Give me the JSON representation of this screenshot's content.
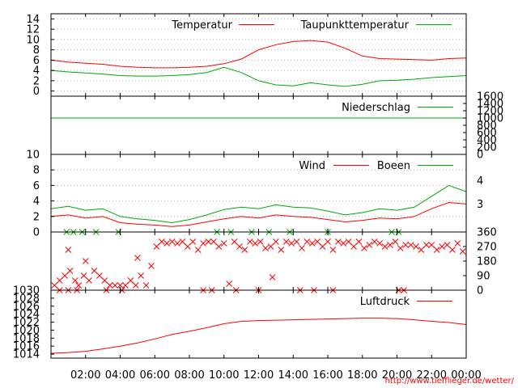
{
  "chart_data": [
    {
      "type": "line",
      "id": "temp",
      "ylim": [
        -1,
        15
      ],
      "yticks": [
        0,
        2,
        4,
        6,
        8,
        10,
        12,
        14
      ],
      "grid": true,
      "legend_position": "top",
      "series": [
        {
          "name": "Temperatur",
          "color": "#ff0000",
          "x": [
            0,
            1,
            2,
            3,
            4,
            5,
            6,
            7,
            8,
            9,
            10,
            11,
            12,
            13,
            14,
            15,
            16,
            17,
            18,
            19,
            20,
            21,
            22,
            23,
            24
          ],
          "y": [
            6.0,
            5.6,
            5.4,
            5.2,
            4.8,
            4.6,
            4.5,
            4.5,
            4.6,
            4.8,
            5.3,
            6.2,
            8.0,
            9.0,
            9.6,
            9.8,
            9.5,
            8.3,
            6.8,
            6.3,
            6.2,
            6.1,
            6.0,
            6.3,
            6.4
          ]
        },
        {
          "name": "Taupunkttemperatur",
          "color": "#00aa00",
          "x": [
            0,
            1,
            2,
            3,
            4,
            5,
            6,
            7,
            8,
            9,
            10,
            11,
            12,
            13,
            14,
            15,
            16,
            17,
            18,
            19,
            20,
            21,
            22,
            23,
            24
          ],
          "y": [
            4.0,
            3.7,
            3.5,
            3.3,
            3.0,
            2.9,
            2.9,
            3.0,
            3.2,
            3.6,
            4.6,
            3.6,
            2.0,
            1.2,
            1.0,
            1.6,
            1.2,
            0.9,
            1.3,
            2.0,
            2.1,
            2.3,
            2.6,
            2.8,
            3.0
          ]
        }
      ]
    },
    {
      "type": "line",
      "id": "rain",
      "ylim": [
        0,
        1600
      ],
      "yticks": [
        0,
        200,
        400,
        600,
        800,
        1000,
        1200,
        1400,
        1600
      ],
      "yaxis_side": "right",
      "series": [
        {
          "name": "Niederschlag",
          "color": "#00aa00",
          "x": [
            0,
            24
          ],
          "y": [
            1000,
            1000
          ]
        }
      ]
    },
    {
      "type": "line",
      "id": "wind",
      "ylim": [
        0,
        10
      ],
      "yticks": [
        0,
        2,
        4,
        6,
        8,
        10
      ],
      "grid": true,
      "right_axis_labels": [
        {
          "label": "4",
          "at": 6.6
        },
        {
          "label": "3",
          "at": 3.6
        }
      ],
      "series": [
        {
          "name": "Wind",
          "color": "#ff0000",
          "x": [
            0,
            1,
            2,
            3,
            4,
            5,
            6,
            7,
            8,
            9,
            10,
            11,
            12,
            13,
            14,
            15,
            16,
            17,
            18,
            19,
            20,
            21,
            22,
            23,
            24
          ],
          "y": [
            2.0,
            2.2,
            1.8,
            2.0,
            1.2,
            1.0,
            0.9,
            0.7,
            0.9,
            1.3,
            1.7,
            2.0,
            1.8,
            2.2,
            2.0,
            1.9,
            1.6,
            1.3,
            1.5,
            1.8,
            1.7,
            2.0,
            3.0,
            3.8,
            3.6
          ]
        },
        {
          "name": "Boeen",
          "color": "#00aa00",
          "x": [
            0,
            1,
            2,
            3,
            4,
            5,
            6,
            7,
            8,
            9,
            10,
            11,
            12,
            13,
            14,
            15,
            16,
            17,
            18,
            19,
            20,
            21,
            22,
            23,
            24
          ],
          "y": [
            3.0,
            3.3,
            2.8,
            3.0,
            2.0,
            1.7,
            1.5,
            1.2,
            1.6,
            2.2,
            2.9,
            3.2,
            3.0,
            3.5,
            3.2,
            3.1,
            2.7,
            2.2,
            2.5,
            3.0,
            2.8,
            3.2,
            4.6,
            6.0,
            5.2
          ]
        }
      ]
    },
    {
      "type": "scatter",
      "id": "direction",
      "ylim": [
        0,
        360
      ],
      "yticks": [
        0,
        90,
        180,
        270,
        360
      ],
      "yaxis_side": "right",
      "marker": "x",
      "color": "#ff0000",
      "green_marker_color": "#00aa00",
      "points": [
        [
          0.2,
          30
        ],
        [
          0.5,
          60
        ],
        [
          0.8,
          90
        ],
        [
          1.1,
          120
        ],
        [
          1.4,
          60
        ],
        [
          1.6,
          30
        ],
        [
          1.9,
          90
        ],
        [
          2.2,
          60
        ],
        [
          2.5,
          120
        ],
        [
          2.8,
          90
        ],
        [
          3.1,
          60
        ],
        [
          3.4,
          30
        ],
        [
          3.7,
          30
        ],
        [
          4.0,
          30
        ],
        [
          4.3,
          30
        ],
        [
          4.6,
          60
        ],
        [
          4.9,
          30
        ],
        [
          5.2,
          90
        ],
        [
          5.5,
          30
        ],
        [
          5.8,
          150
        ],
        [
          6.1,
          270
        ],
        [
          6.4,
          300
        ],
        [
          6.7,
          290
        ],
        [
          7.0,
          300
        ],
        [
          7.3,
          290
        ],
        [
          7.6,
          300
        ],
        [
          7.9,
          270
        ],
        [
          8.2,
          300
        ],
        [
          8.5,
          250
        ],
        [
          8.8,
          290
        ],
        [
          9.1,
          300
        ],
        [
          9.4,
          300
        ],
        [
          9.7,
          270
        ],
        [
          10.0,
          290
        ],
        [
          10.3,
          40
        ],
        [
          10.6,
          300
        ],
        [
          10.9,
          270
        ],
        [
          11.2,
          250
        ],
        [
          11.5,
          300
        ],
        [
          11.8,
          290
        ],
        [
          12.1,
          300
        ],
        [
          12.4,
          260
        ],
        [
          12.7,
          270
        ],
        [
          13.0,
          300
        ],
        [
          13.3,
          250
        ],
        [
          13.6,
          300
        ],
        [
          13.9,
          290
        ],
        [
          14.2,
          300
        ],
        [
          14.5,
          260
        ],
        [
          14.8,
          300
        ],
        [
          15.1,
          290
        ],
        [
          15.4,
          300
        ],
        [
          15.7,
          270
        ],
        [
          16.0,
          300
        ],
        [
          16.3,
          250
        ],
        [
          16.6,
          300
        ],
        [
          16.9,
          290
        ],
        [
          17.2,
          300
        ],
        [
          17.5,
          270
        ],
        [
          17.8,
          300
        ],
        [
          18.1,
          260
        ],
        [
          18.4,
          280
        ],
        [
          18.7,
          300
        ],
        [
          19.0,
          290
        ],
        [
          19.3,
          270
        ],
        [
          19.6,
          280
        ],
        [
          19.9,
          300
        ],
        [
          20.2,
          260
        ],
        [
          20.5,
          280
        ],
        [
          20.8,
          280
        ],
        [
          21.1,
          270
        ],
        [
          21.4,
          250
        ],
        [
          21.7,
          280
        ],
        [
          22.0,
          280
        ],
        [
          22.3,
          250
        ],
        [
          22.6,
          270
        ],
        [
          22.9,
          280
        ],
        [
          23.2,
          250
        ],
        [
          23.5,
          290
        ],
        [
          23.8,
          240
        ],
        [
          5.0,
          200
        ],
        [
          2.0,
          180
        ],
        [
          1.0,
          250
        ],
        [
          12.8,
          80
        ]
      ],
      "calm_points": [
        [
          0.5,
          0
        ],
        [
          1.0,
          0
        ],
        [
          1.5,
          0
        ],
        [
          3.2,
          0
        ],
        [
          4.1,
          0
        ],
        [
          8.8,
          0
        ],
        [
          9.3,
          0
        ],
        [
          10.7,
          0
        ],
        [
          12.0,
          0
        ],
        [
          14.4,
          0
        ],
        [
          15.2,
          0
        ],
        [
          16.3,
          0
        ],
        [
          20.1,
          0
        ],
        [
          20.4,
          0
        ]
      ],
      "green_points": [
        [
          0.9,
          360
        ],
        [
          1.3,
          360
        ],
        [
          1.8,
          360
        ],
        [
          2.6,
          360
        ],
        [
          3.9,
          360
        ],
        [
          9.6,
          360
        ],
        [
          10.4,
          360
        ],
        [
          11.6,
          360
        ],
        [
          12.6,
          360
        ],
        [
          13.8,
          360
        ],
        [
          16.0,
          360
        ],
        [
          19.7,
          360
        ],
        [
          20.1,
          360
        ]
      ]
    },
    {
      "type": "line",
      "id": "pressure",
      "ylim": [
        1013,
        1030
      ],
      "yticks": [
        1014,
        1016,
        1018,
        1020,
        1022,
        1024,
        1026,
        1028,
        1030
      ],
      "series": [
        {
          "name": "Luftdruck",
          "color": "#ff0000",
          "x": [
            0,
            1,
            2,
            3,
            4,
            5,
            6,
            7,
            8,
            9,
            10,
            11,
            12,
            13,
            14,
            15,
            16,
            17,
            18,
            19,
            20,
            21,
            22,
            23,
            24
          ],
          "y": [
            1014.2,
            1014.4,
            1014.7,
            1015.3,
            1016.0,
            1016.8,
            1017.8,
            1018.9,
            1019.7,
            1020.6,
            1021.6,
            1022.2,
            1022.4,
            1022.5,
            1022.6,
            1022.7,
            1022.8,
            1022.9,
            1023.0,
            1023.0,
            1022.9,
            1022.6,
            1022.2,
            1021.9,
            1021.4
          ]
        }
      ]
    }
  ],
  "x_axis": {
    "range_hours": [
      0,
      24
    ],
    "ticks": [
      {
        "label": "02:00",
        "hour": 2
      },
      {
        "label": "04:00",
        "hour": 4
      },
      {
        "label": "06:00",
        "hour": 6
      },
      {
        "label": "08:00",
        "hour": 8
      },
      {
        "label": "10:00",
        "hour": 10
      },
      {
        "label": "12:00",
        "hour": 12
      },
      {
        "label": "14:00",
        "hour": 14
      },
      {
        "label": "16:00",
        "hour": 16
      },
      {
        "label": "18:00",
        "hour": 18
      },
      {
        "label": "20:00",
        "hour": 20
      },
      {
        "label": "22:00",
        "hour": 22
      },
      {
        "label": "00:00",
        "hour": 24
      }
    ]
  },
  "footer": {
    "source_url": "http://www.tiefflieger.de/wetter/"
  }
}
